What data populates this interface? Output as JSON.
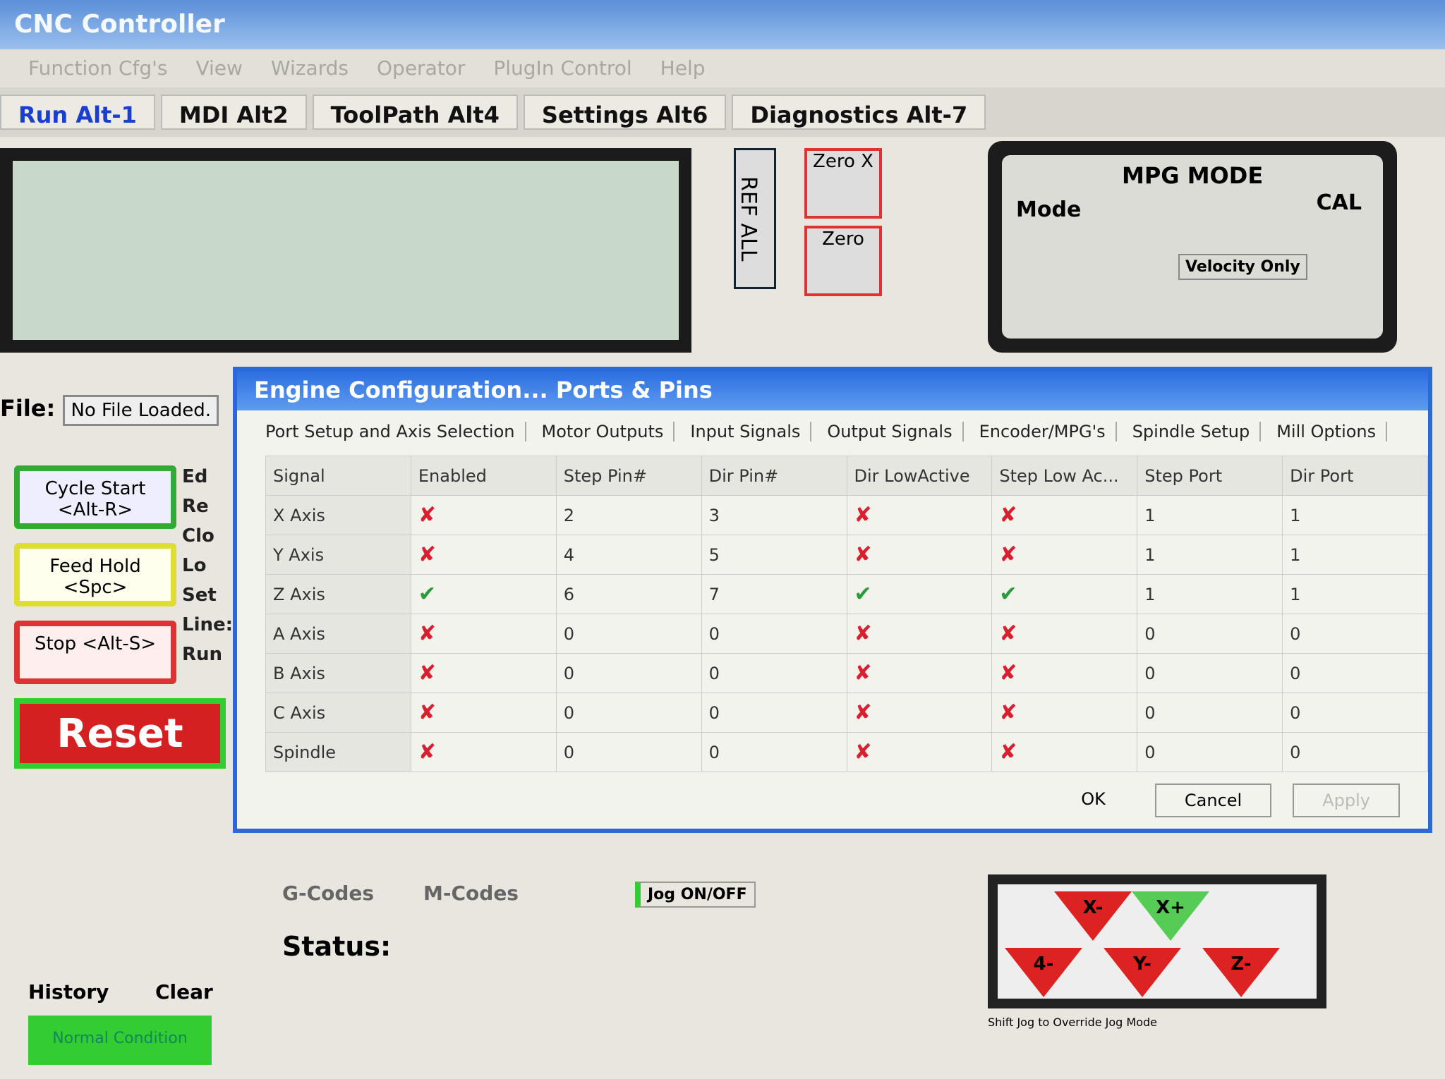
{
  "app": {
    "title": "CNC Controller",
    "menu": [
      "Function Cfg's",
      "View",
      "Wizards",
      "Operator",
      "PlugIn Control",
      "Help"
    ],
    "tabs": [
      "Run Alt-1",
      "MDI Alt2",
      "ToolPath Alt4",
      "Settings Alt6",
      "Diagnostics Alt-7"
    ],
    "ref_all": "REF ALL",
    "zero_x": "Zero X",
    "zero_y": "Zero",
    "mpg": {
      "title": "MPG MODE",
      "mode": "Mode",
      "cal": "CAL",
      "velocity": "Velocity Only"
    },
    "file_label": "File:",
    "file_value": "No File Loaded.",
    "side_labels": [
      "Ed",
      "Re",
      "Clo",
      "Lo",
      "Set",
      "Line:",
      "Run"
    ],
    "cycle_start": "Cycle Start <Alt-R>",
    "feed_hold": "Feed Hold <Spc>",
    "stop": "Stop <Alt-S>",
    "reset": "Reset",
    "gcodes": "G-Codes",
    "mcodes": "M-Codes",
    "jog_onoff": "Jog ON/OFF",
    "status_label": "Status:",
    "history": "History",
    "clear": "Clear",
    "normal_condition": "Normal Condition",
    "jog_buttons": [
      "X-",
      "X+",
      "4-",
      "Y-",
      "Z-"
    ],
    "jog_hint": "Shift Jog to Override Jog Mode"
  },
  "dialog": {
    "title": "Engine Configuration... Ports & Pins",
    "tabs": [
      "Port Setup and Axis Selection",
      "Motor Outputs",
      "Input Signals",
      "Output Signals",
      "Encoder/MPG's",
      "Spindle Setup",
      "Mill Options"
    ],
    "columns": [
      "Signal",
      "Enabled",
      "Step Pin#",
      "Dir Pin#",
      "Dir LowActive",
      "Step Low Ac...",
      "Step Port",
      "Dir Port"
    ],
    "rows": [
      {
        "signal": "X Axis",
        "enabled": "x",
        "step_pin": "2",
        "dir_pin": "3",
        "dir_low": "x",
        "step_low": "x",
        "step_port": "1",
        "dir_port": "1"
      },
      {
        "signal": "Y Axis",
        "enabled": "x",
        "step_pin": "4",
        "dir_pin": "5",
        "dir_low": "x",
        "step_low": "x",
        "step_port": "1",
        "dir_port": "1"
      },
      {
        "signal": "Z Axis",
        "enabled": "check",
        "step_pin": "6",
        "dir_pin": "7",
        "dir_low": "check",
        "step_low": "check",
        "step_port": "1",
        "dir_port": "1"
      },
      {
        "signal": "A Axis",
        "enabled": "x",
        "step_pin": "0",
        "dir_pin": "0",
        "dir_low": "x",
        "step_low": "x",
        "step_port": "0",
        "dir_port": "0"
      },
      {
        "signal": "B Axis",
        "enabled": "x",
        "step_pin": "0",
        "dir_pin": "0",
        "dir_low": "x",
        "step_low": "x",
        "step_port": "0",
        "dir_port": "0"
      },
      {
        "signal": "C Axis",
        "enabled": "x",
        "step_pin": "0",
        "dir_pin": "0",
        "dir_low": "x",
        "step_low": "x",
        "step_port": "0",
        "dir_port": "0"
      },
      {
        "signal": "Spindle",
        "enabled": "x",
        "step_pin": "0",
        "dir_pin": "0",
        "dir_low": "x",
        "step_low": "x",
        "step_port": "0",
        "dir_port": "0"
      }
    ],
    "ok": "OK",
    "cancel": "Cancel",
    "apply": "Apply"
  },
  "colors": {
    "x_mark": "#d82030",
    "check_mark": "#2a9a3a",
    "title_blue": "#2c6ee0"
  }
}
